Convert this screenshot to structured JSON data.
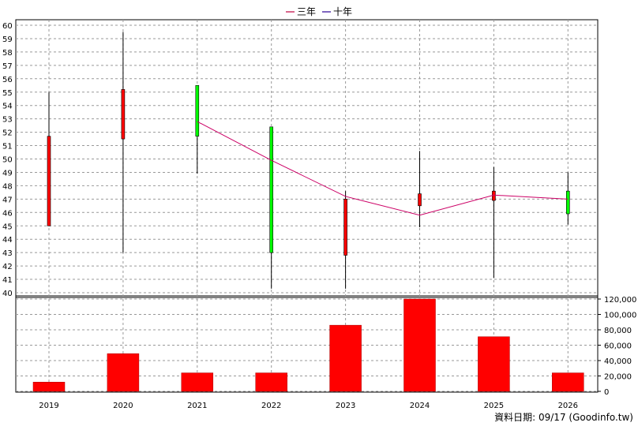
{
  "legend": {
    "items": [
      {
        "label": "三年",
        "color": "#cc3366"
      },
      {
        "label": "十年",
        "color": "#5533aa"
      }
    ]
  },
  "footer": {
    "label": "資料日期: 09/17  (Goodinfo.tw)"
  },
  "colors": {
    "up": "#ff0000",
    "down": "#00ff00",
    "bar": "#ff0000",
    "line": "#cc0066",
    "grid": "#999999"
  },
  "chart_data": [
    {
      "type": "candlestick",
      "x": [
        "2019",
        "2020",
        "2021",
        "2022",
        "2023",
        "2024",
        "2025",
        "2026"
      ],
      "series": [
        {
          "open": 45.0,
          "high": 55.0,
          "low": 45.0,
          "close": 51.7,
          "direction": "up"
        },
        {
          "open": 51.5,
          "high": 59.5,
          "low": 43.0,
          "close": 55.2,
          "direction": "up"
        },
        {
          "open": 55.5,
          "high": 55.5,
          "low": 48.9,
          "close": 51.7,
          "direction": "down"
        },
        {
          "open": 52.4,
          "high": 52.4,
          "low": 40.3,
          "close": 43.0,
          "direction": "down"
        },
        {
          "open": 42.8,
          "high": 47.6,
          "low": 40.3,
          "close": 47.0,
          "direction": "up"
        },
        {
          "open": 46.5,
          "high": 50.6,
          "low": 44.9,
          "close": 47.4,
          "direction": "up"
        },
        {
          "open": 46.9,
          "high": 49.4,
          "low": 41.1,
          "close": 47.6,
          "direction": "up"
        },
        {
          "open": 47.6,
          "high": 49.0,
          "low": 45.1,
          "close": 45.9,
          "direction": "down"
        }
      ],
      "y_ticks": [
        "40",
        "41",
        "42",
        "43",
        "44",
        "45",
        "46",
        "47",
        "48",
        "49",
        "50",
        "51",
        "52",
        "53",
        "54",
        "55",
        "56",
        "57",
        "58",
        "59",
        "60"
      ],
      "ylim": [
        40,
        60
      ],
      "grid": true
    },
    {
      "type": "line",
      "name": "三年",
      "x": [
        "2021",
        "2022",
        "2023",
        "2024",
        "2025",
        "2026"
      ],
      "values": [
        52.8,
        49.9,
        47.2,
        45.8,
        47.3,
        47.0
      ]
    },
    {
      "type": "bar",
      "categories": [
        "2019",
        "2020",
        "2021",
        "2022",
        "2023",
        "2024",
        "2025",
        "2026"
      ],
      "values": [
        12000,
        49000,
        24000,
        24000,
        86000,
        120000,
        71000,
        24000
      ],
      "y_ticks": [
        "0",
        "20,000",
        "40,000",
        "60,000",
        "80,000",
        "100,000",
        "120,000"
      ],
      "ylim": [
        0,
        120000
      ],
      "grid": true
    }
  ]
}
